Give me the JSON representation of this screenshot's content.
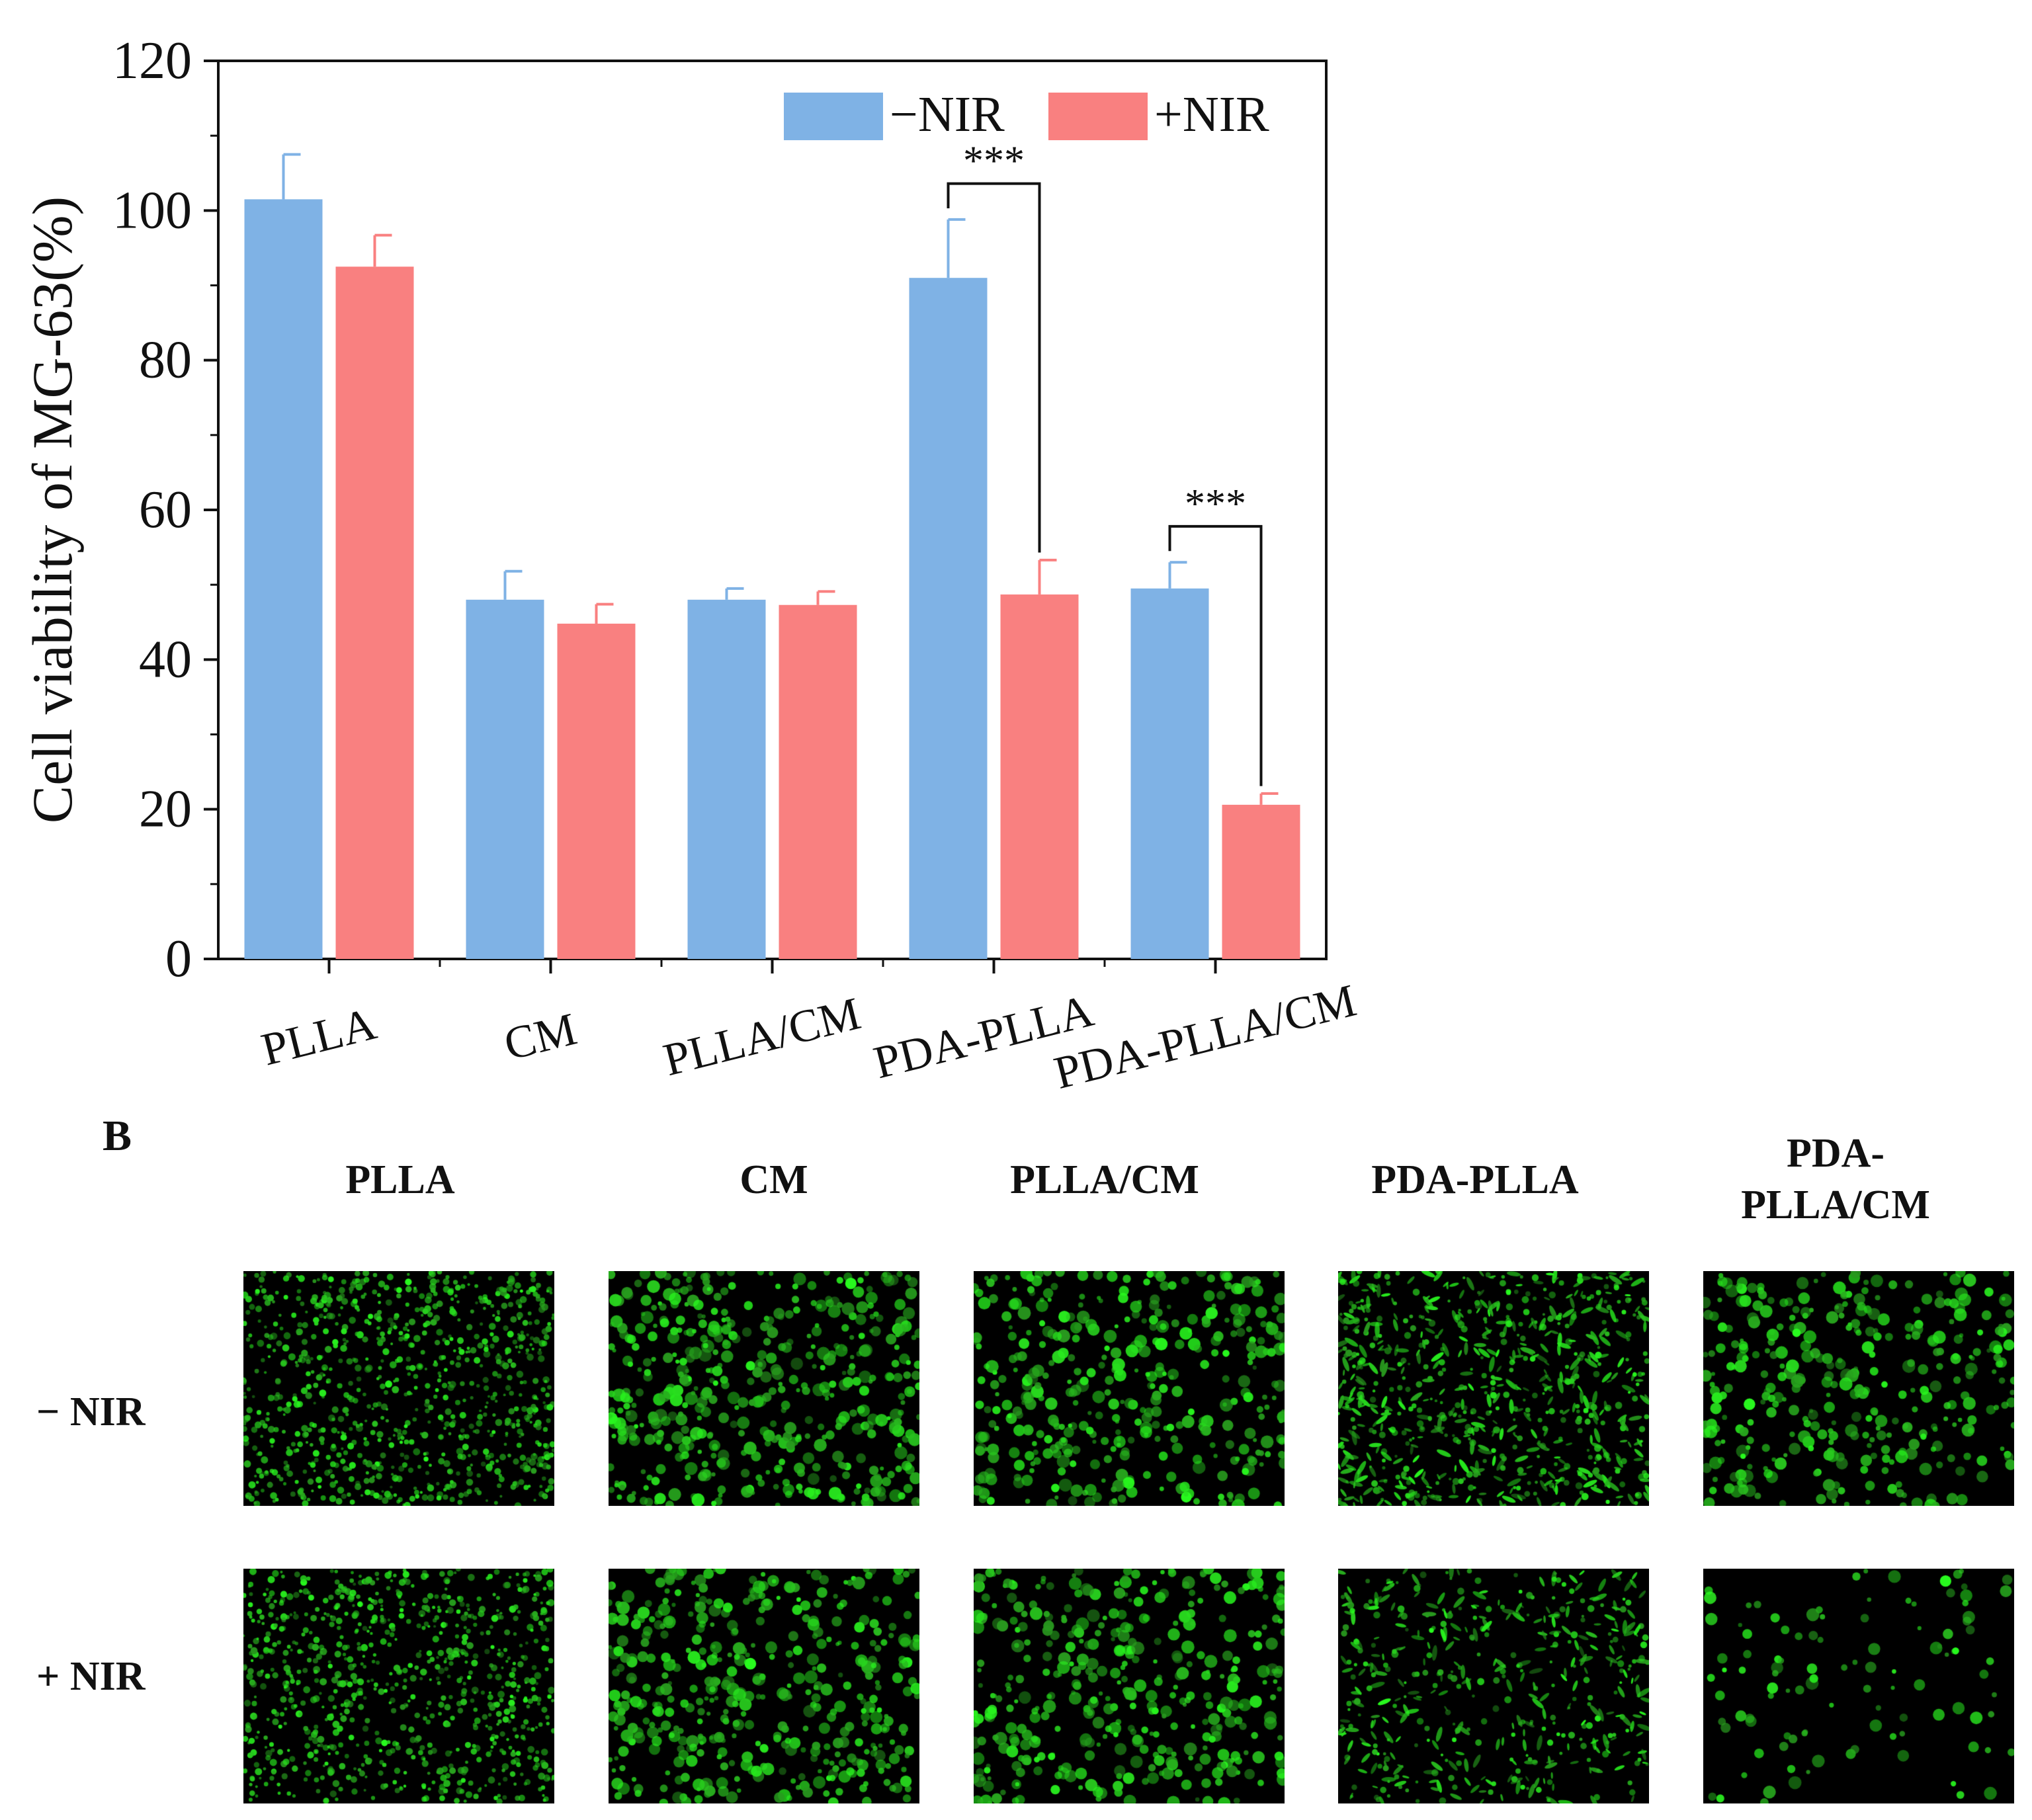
{
  "chart_data": {
    "type": "bar",
    "ylabel": "Cell viability of MG-63(%)",
    "xlabel": "",
    "ylim": [
      0,
      120
    ],
    "yticks": [
      "0",
      "20",
      "40",
      "60",
      "80",
      "100",
      "120"
    ],
    "categories": [
      "PLLA",
      "CM",
      "PLLA/CM",
      "PDA-PLLA",
      "PDA-PLLA/CM"
    ],
    "series": [
      {
        "name": "−NIR",
        "color": "#7fb2e5",
        "values": [
          101.5,
          48.0,
          48.0,
          91.0,
          49.5
        ],
        "errors": [
          6.0,
          3.8,
          1.5,
          7.8,
          3.5
        ]
      },
      {
        "name": "+NIR",
        "color": "#f98080",
        "values": [
          92.5,
          44.8,
          47.3,
          48.7,
          20.6
        ],
        "errors": [
          4.2,
          2.6,
          1.8,
          4.6,
          1.5
        ]
      }
    ],
    "legend": "top-right",
    "grid": false,
    "significance": [
      {
        "category": "PDA-PLLA",
        "label": "***"
      },
      {
        "category": "PDA-PLLA/CM",
        "label": "***"
      }
    ]
  },
  "panel_b": {
    "letter": "B",
    "columns": [
      "PLLA",
      "CM",
      "PLLA/CM",
      "PDA-PLLA",
      "PDA-\nPLLA/CM"
    ],
    "rows": [
      "− NIR",
      "+ NIR"
    ],
    "cell_density": [
      [
        1.0,
        0.55,
        0.45,
        0.85,
        0.4
      ],
      [
        0.95,
        0.5,
        0.45,
        0.55,
        0.12
      ]
    ]
  }
}
